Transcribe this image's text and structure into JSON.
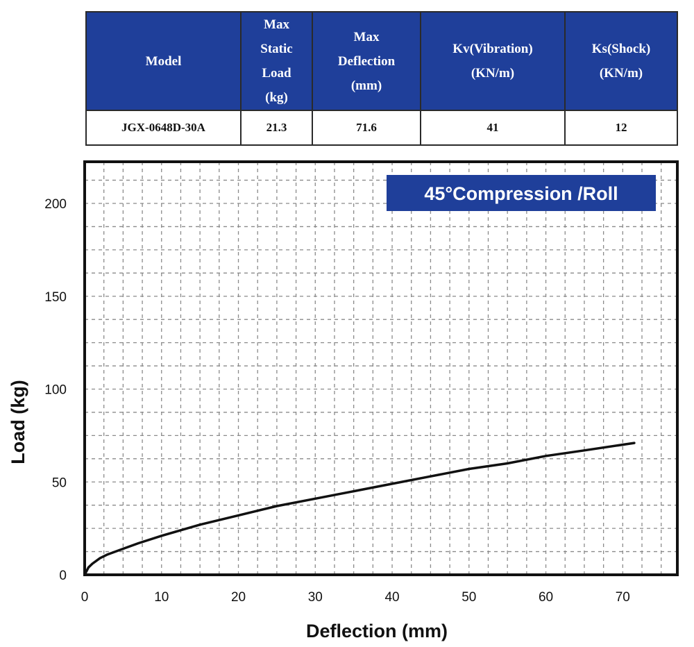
{
  "table": {
    "headers": [
      "Model",
      "Max Static Load (kg)",
      "Max Deflection (mm)",
      "Kv(Vibration) (KN/m)",
      "Ks(Shock) (KN/m)"
    ],
    "header_lines": [
      [
        "Model"
      ],
      [
        "Max",
        "Static",
        "Load",
        "(kg)"
      ],
      [
        "Max",
        "Deflection",
        "(mm)"
      ],
      [
        "Kv(Vibration)",
        "(KN/m)"
      ],
      [
        "Ks(Shock)",
        "(KN/m)"
      ]
    ],
    "row": [
      "JGX-0648D-30A",
      "21.3",
      "71.6",
      "41",
      "12"
    ],
    "header_color": "#1f3f9a"
  },
  "chart_data": {
    "type": "line",
    "title": "45°Compression /Roll",
    "xlabel": "Deflection (mm)",
    "ylabel": "Load (kg)",
    "xlim": [
      0,
      76
    ],
    "ylim": [
      0,
      220
    ],
    "xticks": [
      0,
      10,
      20,
      30,
      40,
      50,
      60,
      70
    ],
    "yticks": [
      0,
      50,
      100,
      150,
      200
    ],
    "grid": true,
    "line_color": "#111111",
    "badge_color": "#1f3f9a",
    "series": [
      {
        "x": [
          0,
          0.5,
          1,
          2,
          3,
          5,
          7,
          10,
          15,
          20,
          25,
          30,
          35,
          40,
          45,
          50,
          55,
          60,
          65,
          71.5
        ],
        "y": [
          0,
          4,
          6,
          9,
          11,
          14,
          17,
          21,
          27,
          32,
          37,
          41,
          45,
          49,
          53,
          57,
          60,
          64,
          67,
          71
        ]
      }
    ]
  }
}
